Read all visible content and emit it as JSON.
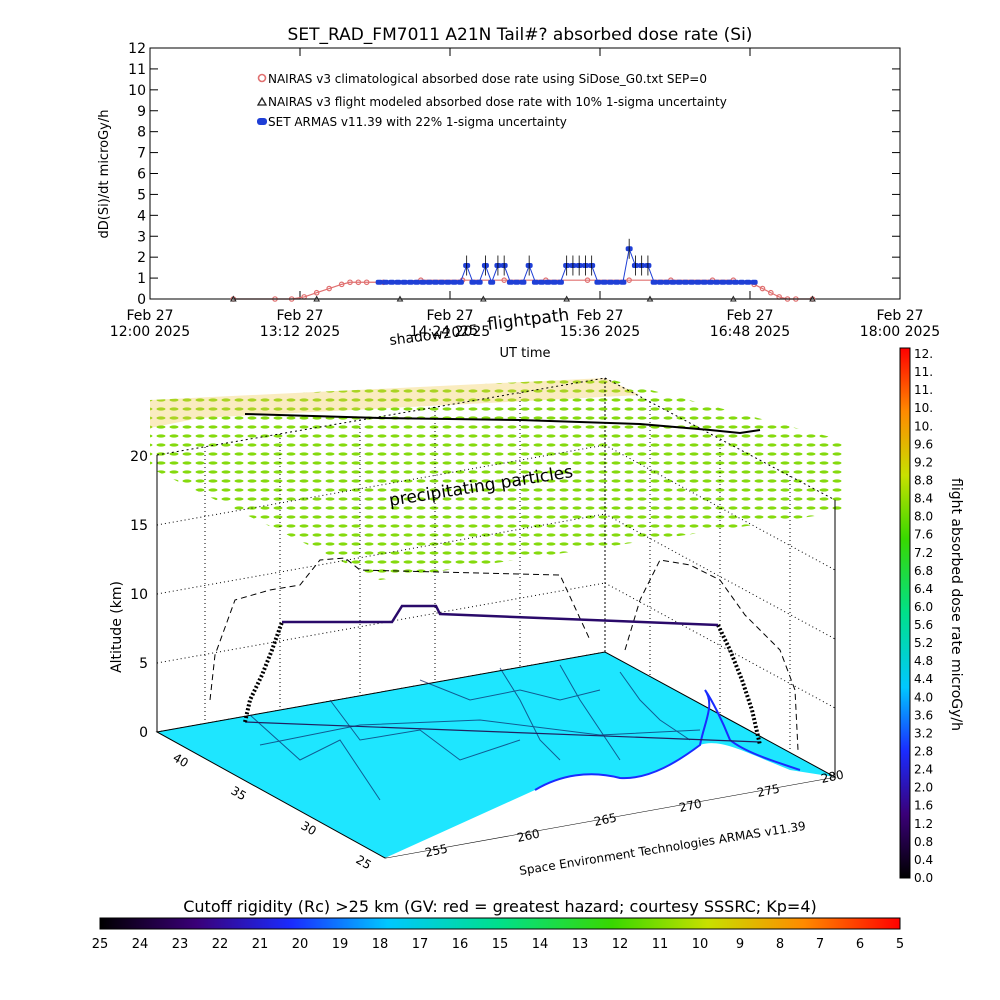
{
  "title": "SET_RAD_FM7011  A21N Tail#? absorbed dose rate (Si)",
  "chart_data": [
    {
      "type": "line",
      "ylabel": "dD(Si)/dt microGy/h",
      "xlabel": "UT time",
      "ylim": [
        0,
        12
      ],
      "y_ticks": [
        "0",
        "1",
        "2",
        "3",
        "4",
        "5",
        "6",
        "7",
        "8",
        "9",
        "10",
        "11",
        "12"
      ],
      "x_ticks": [
        {
          "line1": "Feb 27",
          "line2": "12:00 2025",
          "t": 0
        },
        {
          "line1": "Feb 27",
          "line2": "13:12 2025",
          "t": 72
        },
        {
          "line1": "Feb 27",
          "line2": "14:24 2025",
          "t": 144
        },
        {
          "line1": "Feb 27",
          "line2": "15:36 2025",
          "t": 216
        },
        {
          "line1": "Feb 27",
          "line2": "16:48 2025",
          "t": 288
        },
        {
          "line1": "Feb 27",
          "line2": "18:00 2025",
          "t": 360
        }
      ],
      "xlim_minutes_after_1200": [
        0,
        360
      ],
      "legend": [
        "NAIRAS v3 climatological absorbed dose rate using SiDose_G0.txt SEP=0",
        "NAIRAS v3 flight modeled absorbed dose rate with 10% 1-sigma uncertainty",
        "SET ARMAS v11.39 with 22% 1-sigma uncertainty"
      ],
      "series": [
        {
          "name": "NAIRAS v3 climatological absorbed dose rate using SiDose_G0.txt SEP=0",
          "color": "#e07070",
          "x": [
            40,
            60,
            68,
            74,
            80,
            86,
            92,
            96,
            100,
            104,
            112,
            130,
            150,
            170,
            190,
            210,
            230,
            250,
            270,
            280,
            290,
            294,
            298,
            302,
            306,
            310,
            318
          ],
          "y": [
            0,
            0,
            0,
            0.1,
            0.3,
            0.5,
            0.7,
            0.8,
            0.8,
            0.8,
            0.8,
            0.9,
            0.9,
            0.9,
            0.9,
            0.9,
            0.9,
            0.9,
            0.9,
            0.9,
            0.7,
            0.5,
            0.3,
            0.1,
            0,
            0,
            0
          ]
        },
        {
          "name": "NAIRAS v3 flight modeled absorbed dose rate with 10% 1-sigma uncertainty",
          "color": "#222222",
          "x": [
            40,
            80,
            120,
            160,
            200,
            240,
            280,
            318
          ],
          "y": [
            0,
            0,
            0,
            0,
            0,
            0,
            0,
            0
          ]
        },
        {
          "name": "SET ARMAS v11.39 with 22% 1-sigma uncertainty",
          "color": "#1f3fd6",
          "x": [
            110,
            113,
            116,
            119,
            122,
            125,
            128,
            131,
            134,
            137,
            140,
            143,
            146,
            149,
            152,
            155,
            158,
            161,
            164,
            167,
            170,
            173,
            176,
            179,
            182,
            185,
            188,
            191,
            194,
            197,
            200,
            203,
            206,
            209,
            212,
            215,
            218,
            221,
            224,
            227,
            230,
            233,
            236,
            239,
            242,
            245,
            248,
            251,
            254,
            257,
            260,
            263,
            266,
            269,
            272,
            275,
            278,
            281,
            284,
            287,
            290
          ],
          "y": [
            0.8,
            0.8,
            0.8,
            0.8,
            0.8,
            0.8,
            0.8,
            0.8,
            0.8,
            0.8,
            0.8,
            0.8,
            0.8,
            0.8,
            1.6,
            0.8,
            0.8,
            1.6,
            0.8,
            1.6,
            1.6,
            0.8,
            0.8,
            0.8,
            1.6,
            0.8,
            0.8,
            0.8,
            0.8,
            0.8,
            1.6,
            1.6,
            1.6,
            1.6,
            1.6,
            0.8,
            0.8,
            0.8,
            0.8,
            0.8,
            2.4,
            1.6,
            1.6,
            1.6,
            0.8,
            0.8,
            0.8,
            0.8,
            0.8,
            0.8,
            0.8,
            0.8,
            0.8,
            0.8,
            0.8,
            0.8,
            0.8,
            0.8,
            0.8,
            0.8,
            0.8
          ]
        }
      ]
    },
    {
      "type": "3d-flight-path",
      "zlabel": "Altitude (km)",
      "z_ticks": [
        "0",
        "5",
        "10",
        "15",
        "20"
      ],
      "lat_ticks": [
        "25",
        "30",
        "35",
        "40"
      ],
      "lon_ticks": [
        "255",
        "260",
        "265",
        "270",
        "275",
        "280"
      ],
      "annotations": [
        "shadow2025",
        "flightpath",
        "precipitating particles"
      ],
      "credit": "Space Environment Technologies ARMAS v11.39",
      "flight_altitude_km": [
        0,
        6.3,
        8.2,
        8.6,
        8.6,
        8.4,
        8.2,
        7.8,
        0
      ]
    }
  ],
  "colorbar_right": {
    "label": "flight absorbed dose rate microGy/h",
    "ticks": [
      "12.",
      "11.",
      "11.",
      "10.",
      "10.",
      "9.6",
      "9.2",
      "8.8",
      "8.4",
      "8.0",
      "7.6",
      "7.2",
      "6.8",
      "6.4",
      "6.0",
      "5.6",
      "5.2",
      "4.8",
      "4.4",
      "4.0",
      "3.6",
      "3.2",
      "2.8",
      "2.4",
      "2.0",
      "1.6",
      "1.2",
      "0.8",
      "0.4",
      "0.0"
    ]
  },
  "colorbar_bottom": {
    "label": "Cutoff rigidity (Rc) >25 km (GV: red = greatest hazard; courtesy SSSRC; Kp=4)",
    "ticks": [
      "25",
      "24",
      "23",
      "22",
      "21",
      "20",
      "19",
      "18",
      "17",
      "16",
      "15",
      "14",
      "13",
      "12",
      "11",
      "10",
      "9",
      "8",
      "7",
      "6",
      "5"
    ]
  }
}
